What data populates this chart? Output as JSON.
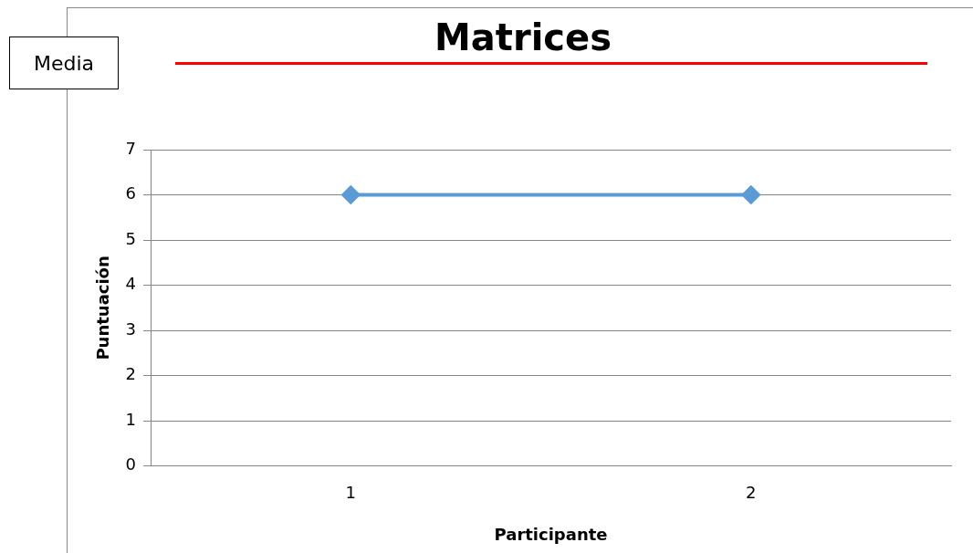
{
  "chart_data": {
    "type": "line",
    "title": "Matrices",
    "xlabel": "Participante",
    "ylabel": "Puntuación",
    "annotations": [
      "Media"
    ],
    "categories": [
      "1",
      "2"
    ],
    "series": [
      {
        "color": "#5b9bd5",
        "values": [
          6,
          6
        ]
      }
    ],
    "ylim": [
      0,
      7
    ],
    "yticks": [
      0,
      1,
      2,
      3,
      4,
      5,
      6,
      7
    ],
    "grid": "y",
    "legend": false,
    "marker": "diamond",
    "line_style": "solid"
  }
}
